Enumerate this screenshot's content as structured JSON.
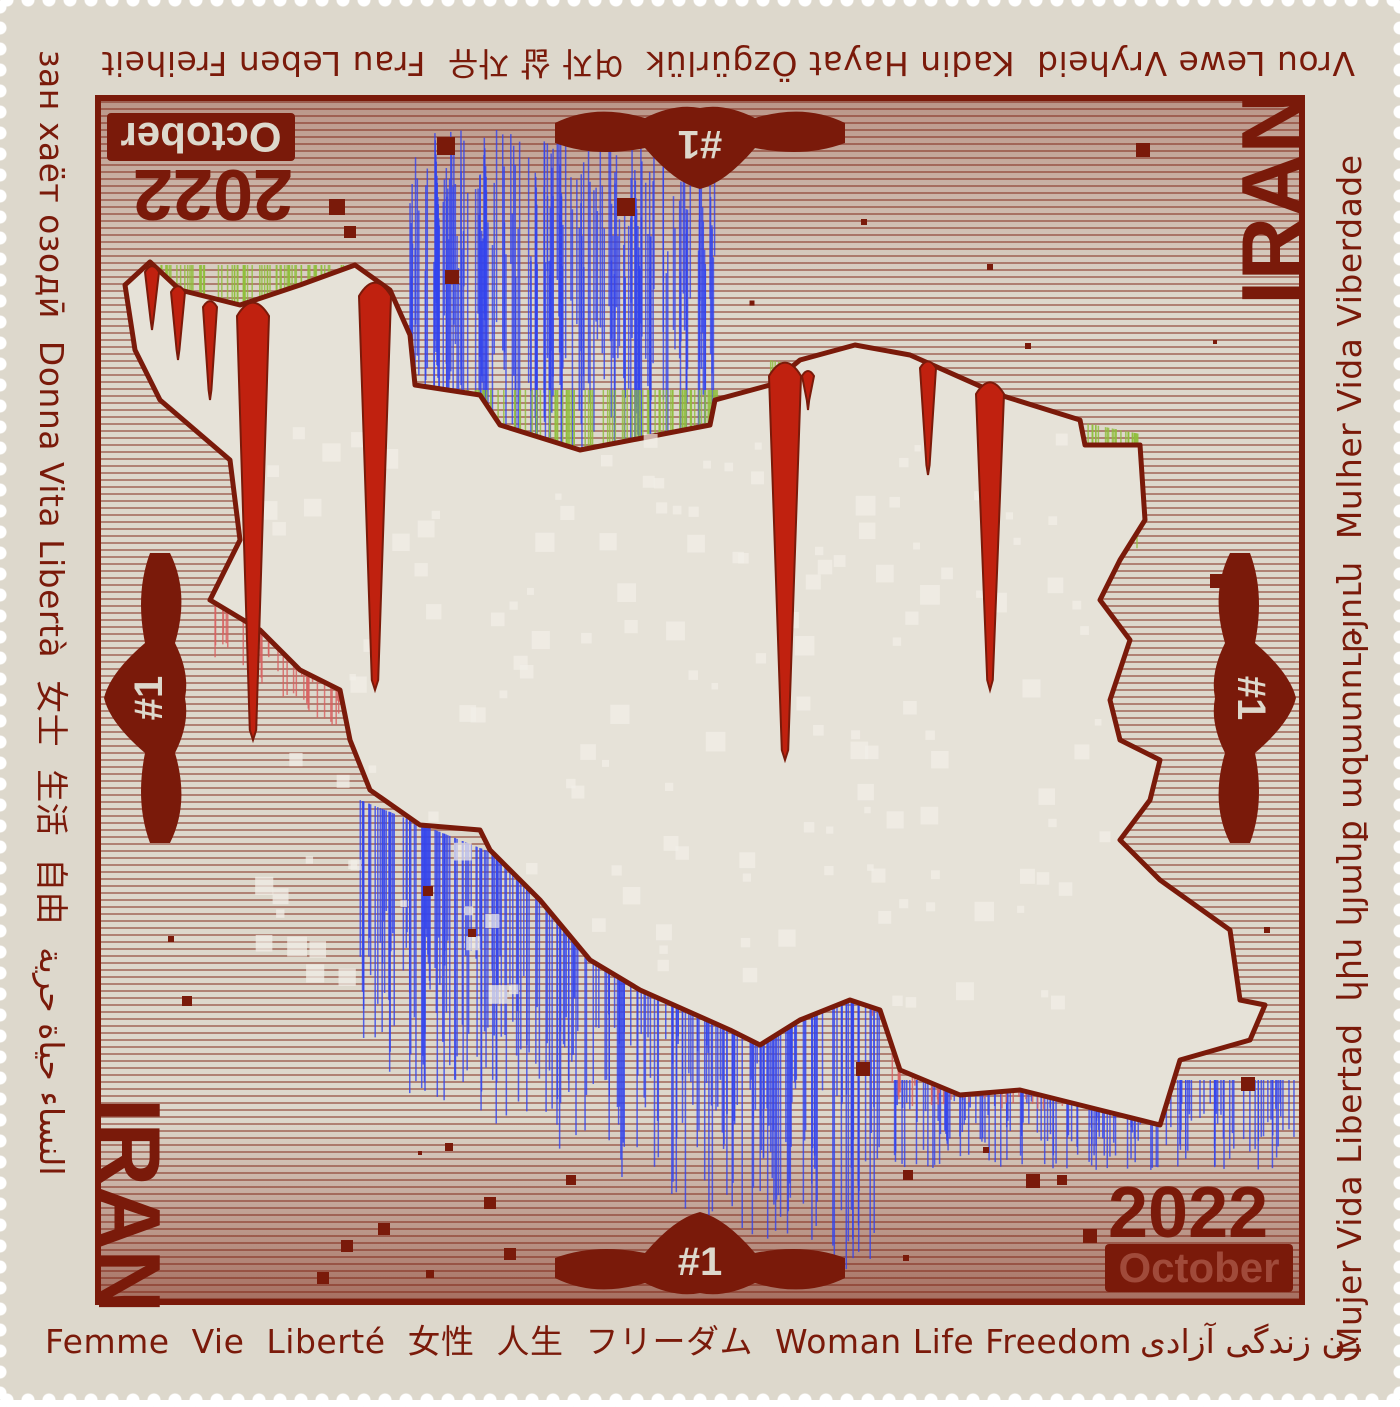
{
  "stamp": {
    "country": "IRAN",
    "year": "2022",
    "month": "October",
    "number": "#1",
    "colors": {
      "ink": "#7a1a0a",
      "paper": "#ddd8cc",
      "blood": "#c0210f",
      "lines_blue": "#3344ee",
      "lines_green": "#8fbf3a",
      "lines_red": "#d96060"
    }
  },
  "edges": {
    "bottom": [
      "Femme",
      "Vie",
      "Liberté",
      "女性",
      "人生",
      "フリーダム",
      "Woman Life Freedom",
      "زن زندگی آزادی"
    ],
    "right": [
      "Mujer Vida Libertad",
      "կին կյանք ազատություն",
      "Mulher Vida Viberdade"
    ],
    "top": [
      "Vrou Lewe Vryheid",
      "Kadin Hayat Özgürlük",
      "여자 삶 자유",
      "Frau Leben Freiheit"
    ],
    "left": [
      "зан хаёт озодӣ",
      "Donna Vita Libertà",
      "女士",
      "生活",
      "自由",
      "النساء حياة حرية"
    ]
  }
}
